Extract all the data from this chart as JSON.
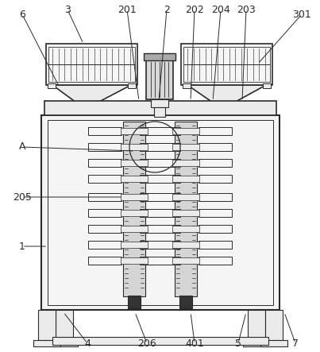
{
  "bg_color": "#ffffff",
  "line_color": "#2a2a2a",
  "gray_light": "#d8d8d8",
  "gray_mid": "#aaaaaa",
  "gray_dark": "#777777",
  "gray_fill": "#ebebeb",
  "gray_fill2": "#e0e0e0",
  "dark_fill": "#333333",
  "white_fill": "#f5f5f5"
}
